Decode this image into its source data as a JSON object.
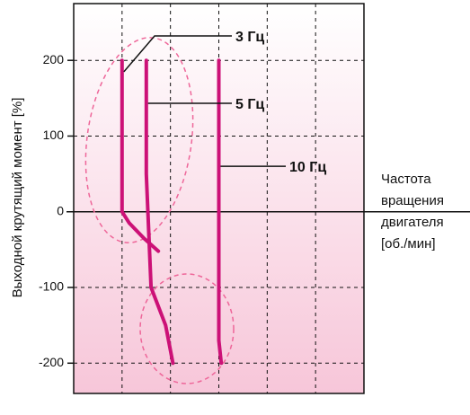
{
  "chart_data": {
    "type": "line",
    "xlabel": [
      "Частота",
      "вращения",
      "двигателя",
      "[об./мин]"
    ],
    "ylabel": "Выходной крутящий момент [%]",
    "y_ticks": [
      "200",
      "100",
      "0",
      "-100",
      "-200"
    ],
    "ylim": [
      -240,
      275
    ],
    "xlim": [
      0,
      6
    ],
    "grid": true,
    "series": [
      {
        "name": "3 Гц",
        "points": [
          [
            1.0,
            200
          ],
          [
            1.0,
            0
          ],
          [
            1.15,
            -15
          ],
          [
            1.45,
            -35
          ],
          [
            1.75,
            -52
          ]
        ]
      },
      {
        "name": "5 Гц",
        "points": [
          [
            1.5,
            200
          ],
          [
            1.5,
            50
          ],
          [
            1.6,
            -100
          ],
          [
            1.9,
            -150
          ],
          [
            2.05,
            -200
          ]
        ]
      },
      {
        "name": "10 Гц",
        "points": [
          [
            3.0,
            200
          ],
          [
            3.0,
            -170
          ],
          [
            3.05,
            -200
          ]
        ]
      }
    ],
    "colors": {
      "line": "#cc1177",
      "highlight": "#ee6699",
      "bg_top": "#ffffff",
      "bg_bottom": "#f7c6d9"
    }
  }
}
